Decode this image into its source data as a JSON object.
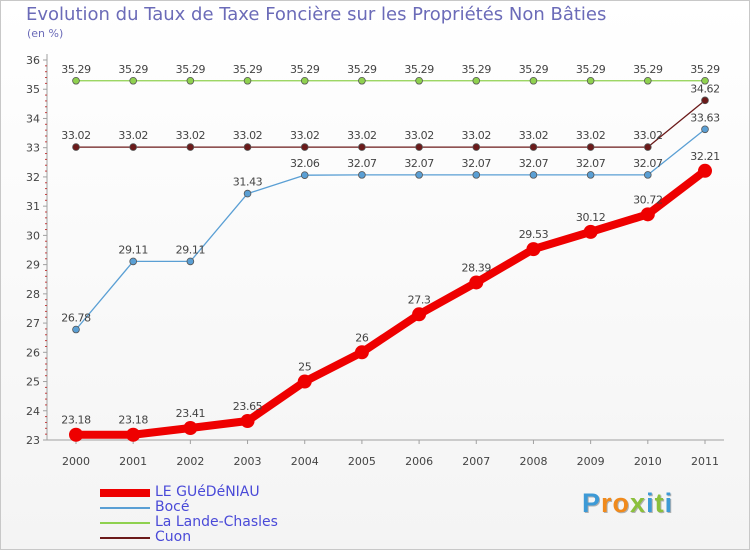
{
  "header": {
    "title": "Evolution du Taux de Taxe Foncière sur les Propriétés Non Bâties",
    "subtitle": "(en %)"
  },
  "brand": {
    "letters": [
      "P",
      "r",
      "o",
      "x",
      "i",
      "t",
      "i"
    ],
    "colors": [
      "#3d9ad6",
      "#f08a1c",
      "#f08a1c",
      "#8bc03c",
      "#3d9ad6",
      "#8bc03c",
      "#3d9ad6"
    ]
  },
  "chart_data": {
    "type": "line",
    "x": [
      "2000",
      "2001",
      "2002",
      "2003",
      "2004",
      "2005",
      "2006",
      "2007",
      "2008",
      "2009",
      "2010",
      "2011"
    ],
    "ylim": [
      23,
      36
    ],
    "yticks": [
      "23",
      "24",
      "25",
      "26",
      "27",
      "28",
      "29",
      "30",
      "31",
      "32",
      "33",
      "34",
      "35",
      "36"
    ],
    "grid": false,
    "legend_position": "bottom-left",
    "series": [
      {
        "name": "Cuon",
        "color": "#6b1a1a",
        "values": [
          33.02,
          33.02,
          33.02,
          33.02,
          33.02,
          33.02,
          33.02,
          33.02,
          33.02,
          33.02,
          33.02,
          34.62
        ],
        "labels": [
          "33.02",
          "33.02",
          "33.02",
          "33.02",
          "33.02",
          "33.02",
          "33.02",
          "33.02",
          "33.02",
          "33.02",
          "33.02",
          "34.62"
        ]
      },
      {
        "name": "La Lande-Chasles",
        "color": "#8fd14f",
        "values": [
          35.29,
          35.29,
          35.29,
          35.29,
          35.29,
          35.29,
          35.29,
          35.29,
          35.29,
          35.29,
          35.29,
          35.29
        ],
        "labels": [
          "35.29",
          "35.29",
          "35.29",
          "35.29",
          "35.29",
          "35.29",
          "35.29",
          "35.29",
          "35.29",
          "35.29",
          "35.29",
          "35.29"
        ]
      },
      {
        "name": "Bocé",
        "color": "#5a9fd4",
        "values": [
          26.78,
          29.11,
          29.11,
          31.43,
          32.06,
          32.07,
          32.07,
          32.07,
          32.07,
          32.07,
          32.07,
          33.63
        ],
        "labels": [
          "26.78",
          "29.11",
          "29.11",
          "31.43",
          "32.06",
          "32.07",
          "32.07",
          "32.07",
          "32.07",
          "32.07",
          "32.07",
          "33.63"
        ]
      },
      {
        "name": "LE GUéDéNIAU",
        "color": "#ee0000",
        "values": [
          23.18,
          23.18,
          23.41,
          23.65,
          25,
          26,
          27.3,
          28.39,
          29.53,
          30.12,
          30.72,
          32.21
        ],
        "labels": [
          "23.18",
          "23.18",
          "23.41",
          "23.65",
          "25",
          "26",
          "27.3",
          "28.39",
          "29.53",
          "30.12",
          "30.72",
          "32.21"
        ]
      }
    ],
    "legend": [
      "LE GUéDéNIAU",
      "Bocé",
      "La Lande-Chasles",
      "Cuon"
    ]
  }
}
